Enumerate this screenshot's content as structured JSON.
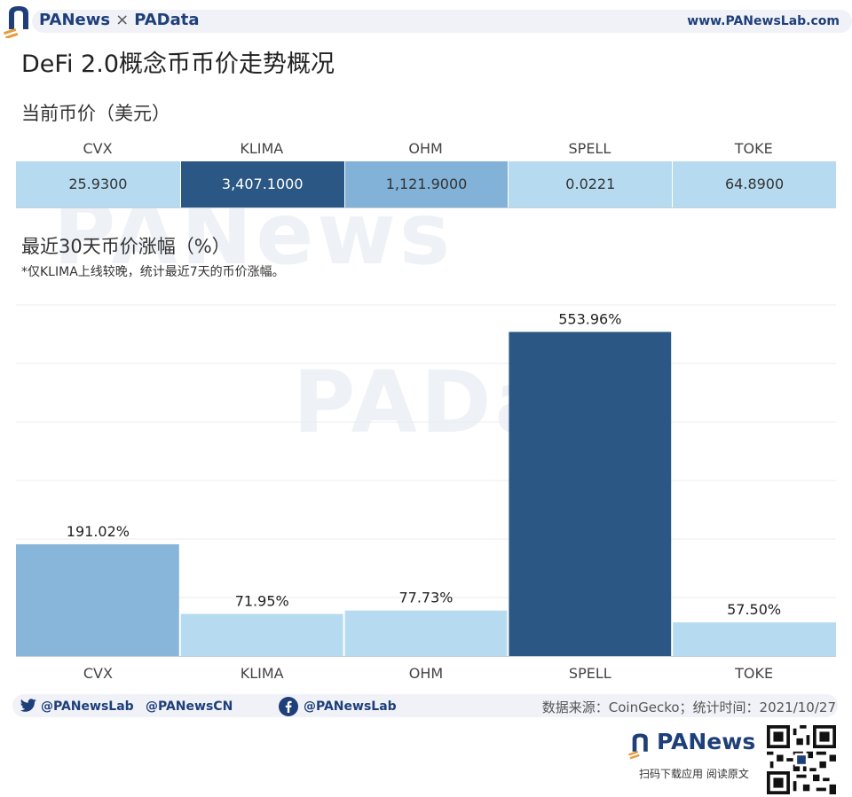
{
  "header": {
    "brand_left": "PANews",
    "brand_sep": "×",
    "brand_right": "PAData",
    "url": "www.PANewsLab.com"
  },
  "title": "DeFi 2.0概念币币价走势概况",
  "price_section": {
    "title": "当前币价（美元）"
  },
  "change_section": {
    "title": "最近30天币价涨幅（%）",
    "note": "*仅KLIMA上线较晚，统计最近7天的币价涨幅。"
  },
  "chart_data": [
    {
      "type": "table",
      "title": "当前币价（美元）",
      "columns": [
        "CVX",
        "KLIMA",
        "OHM",
        "SPELL",
        "TOKE"
      ],
      "values": [
        25.93,
        3407.1,
        1121.9,
        0.0221,
        64.89
      ],
      "labels": [
        "25.9300",
        "3,407.1000",
        "1,121.9000",
        "0.0221",
        "64.8900"
      ],
      "cell_colors": [
        "#b6dbf0",
        "#2b5785",
        "#82b2d8",
        "#b6dbf0",
        "#b6dbf0"
      ],
      "text_colors": [
        "#333333",
        "#ffffff",
        "#333333",
        "#333333",
        "#333333"
      ]
    },
    {
      "type": "bar",
      "title": "最近30天币价涨幅（%）",
      "categories": [
        "CVX",
        "KLIMA",
        "OHM",
        "SPELL",
        "TOKE"
      ],
      "values": [
        191.02,
        71.95,
        77.73,
        553.96,
        57.5
      ],
      "labels": [
        "191.02%",
        "71.95%",
        "77.73%",
        "553.96%",
        "57.50%"
      ],
      "colors": [
        "#88b6da",
        "#b6dbf0",
        "#b6dbf0",
        "#2b5785",
        "#b6dbf0"
      ],
      "ylim": [
        0,
        600
      ],
      "grid": true
    }
  ],
  "footer": {
    "twitter_1": "@PANewsLab",
    "twitter_2": "@PANewsCN",
    "facebook": "@PANewsLab",
    "source": "数据来源：CoinGecko；统计时间：2021/10/27",
    "logo_text": "PANews",
    "scan_text": "扫码下载应用  阅读原文"
  },
  "watermark": {
    "line1": "PANews",
    "line2": "PAData"
  },
  "icons": {
    "logo": "panews-logo-icon",
    "twitter": "twitter-icon",
    "facebook": "facebook-icon",
    "qr": "qr-code-icon"
  }
}
